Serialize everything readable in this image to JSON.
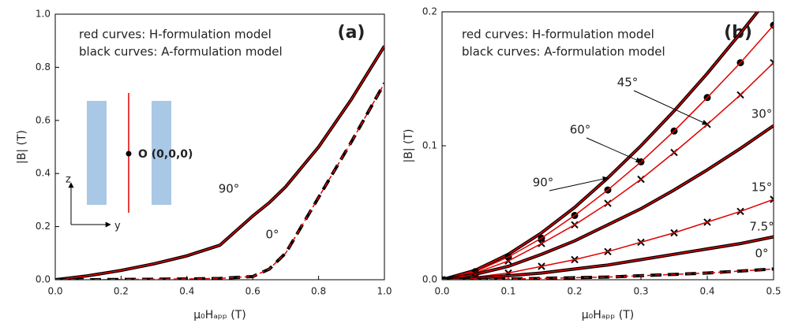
{
  "chart_data": [
    {
      "type": "line",
      "panel_label": "(a)",
      "x_label": "μ₀Hₐₚₚ (T)",
      "y_label": "|B| (T)",
      "notes": [
        {
          "text": "red curves: H-formulation model",
          "color": "#e00000"
        },
        {
          "text": "black curves: A-formulation model",
          "color": "#000000"
        }
      ],
      "inset": {
        "origin_label": "O (0,0,0)",
        "z_label": "z",
        "y_label": "y"
      },
      "xlim": [
        0,
        1
      ],
      "ylim": [
        0,
        1
      ],
      "grid": false,
      "xticks": [
        {
          "value": 0,
          "label": "0.0"
        },
        0.2,
        0.4,
        0.6,
        0.8,
        {
          "value": 1,
          "label": "1.0"
        }
      ],
      "yticks": [
        {
          "value": 0,
          "label": "0.0"
        },
        0.2,
        0.4,
        0.6,
        0.8,
        {
          "value": 1,
          "label": "1.0"
        }
      ],
      "x": [
        0,
        0.1,
        0.2,
        0.3,
        0.4,
        0.5,
        0.6,
        0.65,
        0.7,
        0.8,
        0.9,
        1.0
      ],
      "series": [
        {
          "name": "90°",
          "color": "#e00000",
          "a_color": "#000000",
          "a_marker": "line",
          "dashed": false,
          "values": [
            0,
            0.015,
            0.035,
            0.06,
            0.09,
            0.13,
            0.24,
            0.29,
            0.35,
            0.5,
            0.68,
            0.88
          ]
        },
        {
          "name": "0°",
          "color": "#e00000",
          "a_color": "#000000",
          "a_marker": "line",
          "dashed": true,
          "values": [
            0,
            0,
            0.001,
            0.002,
            0.003,
            0.005,
            0.012,
            0.04,
            0.1,
            0.31,
            0.52,
            0.74
          ]
        }
      ]
    },
    {
      "type": "line",
      "panel_label": "(b)",
      "x_label": "μ₀Hₐₚₚ (T)",
      "y_label": "|B| (T)",
      "notes": [
        {
          "text": "red curves: H-formulation model",
          "color": "#e00000"
        },
        {
          "text": "black curves: A-formulation model",
          "color": "#000000"
        }
      ],
      "xlim": [
        0,
        0.5
      ],
      "ylim": [
        0,
        0.2
      ],
      "grid": false,
      "xticks": [
        {
          "value": 0,
          "label": "0.0"
        },
        0.1,
        0.2,
        0.3,
        0.4,
        0.5
      ],
      "yticks": [
        {
          "value": 0,
          "label": "0.0"
        },
        0.1,
        0.2
      ],
      "x": [
        0,
        0.05,
        0.1,
        0.15,
        0.2,
        0.25,
        0.3,
        0.35,
        0.4,
        0.45,
        0.5
      ],
      "series": [
        {
          "name": "90°",
          "color": "#e00000",
          "a_color": "#000000",
          "a_marker": "line",
          "dashed": false,
          "values": [
            0,
            0.007,
            0.019,
            0.035,
            0.054,
            0.076,
            0.1,
            0.126,
            0.154,
            0.184,
            0.215
          ]
        },
        {
          "name": "60°",
          "color": "#e00000",
          "a_color": "#000000",
          "a_marker": "circle",
          "dashed": false,
          "values": [
            0,
            0.006,
            0.017,
            0.031,
            0.048,
            0.067,
            0.088,
            0.111,
            0.136,
            0.162,
            0.19
          ]
        },
        {
          "name": "45°",
          "color": "#e00000",
          "a_color": "#000000",
          "a_marker": "cross",
          "dashed": false,
          "values": [
            0,
            0.005,
            0.014,
            0.027,
            0.041,
            0.057,
            0.075,
            0.095,
            0.116,
            0.138,
            0.162
          ]
        },
        {
          "name": "30°",
          "color": "#e00000",
          "a_color": "#000000",
          "a_marker": "line",
          "dashed": false,
          "values": [
            0,
            0.004,
            0.01,
            0.019,
            0.029,
            0.041,
            0.053,
            0.067,
            0.082,
            0.098,
            0.115
          ]
        },
        {
          "name": "15°",
          "color": "#e00000",
          "a_color": "#000000",
          "a_marker": "cross",
          "dashed": false,
          "values": [
            0,
            0.002,
            0.005,
            0.01,
            0.015,
            0.021,
            0.028,
            0.035,
            0.043,
            0.051,
            0.06
          ]
        },
        {
          "name": "7.5°",
          "color": "#e00000",
          "a_color": "#000000",
          "a_marker": "line",
          "dashed": false,
          "values": [
            0,
            0.001,
            0.003,
            0.005,
            0.008,
            0.011,
            0.015,
            0.019,
            0.023,
            0.027,
            0.032
          ]
        },
        {
          "name": "0°",
          "color": "#e00000",
          "a_color": "#000000",
          "a_marker": "line",
          "dashed": true,
          "values": [
            0,
            0,
            0.0005,
            0.001,
            0.0015,
            0.002,
            0.003,
            0.004,
            0.005,
            0.0065,
            0.008
          ]
        }
      ]
    }
  ]
}
